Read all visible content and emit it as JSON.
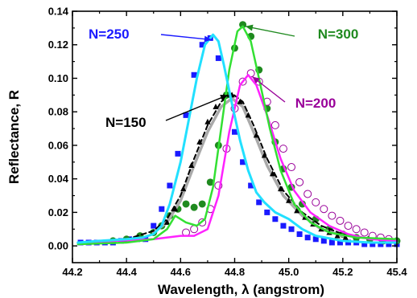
{
  "chart_data": {
    "type": "line",
    "xlabel": "Wavelength, λ (angstrom)",
    "ylabel": "Reflectance, R",
    "xlim": [
      44.2,
      45.4
    ],
    "ylim": [
      -0.01,
      0.14
    ],
    "x_ticks": [
      "44.2",
      "44.4",
      "44.6",
      "44.8",
      "45.0",
      "45.2",
      "45.4"
    ],
    "y_ticks": [
      "0.00",
      "0.02",
      "0.04",
      "0.06",
      "0.08",
      "0.10",
      "0.12",
      "0.14"
    ],
    "grid": false,
    "annotations": [
      {
        "text": "N=250",
        "color": "#1a1aff",
        "arrow_to": [
          44.72,
          0.125
        ]
      },
      {
        "text": "N=300",
        "color": "#1f8a1f",
        "arrow_to": [
          44.83,
          0.131
        ]
      },
      {
        "text": "N=150",
        "color": "#000000",
        "arrow_to": [
          44.79,
          0.09
        ]
      },
      {
        "text": "N=200",
        "color": "#990099",
        "arrow_to": [
          44.86,
          0.102
        ]
      }
    ],
    "series": [
      {
        "label": "N=250",
        "style": "square markers + cyan line",
        "color": "#1a1aff",
        "line_color": "#22e0ff",
        "marker": "square",
        "x": [
          44.23,
          44.26,
          44.29,
          44.32,
          44.35,
          44.38,
          44.41,
          44.44,
          44.47,
          44.5,
          44.53,
          44.56,
          44.59,
          44.62,
          44.65,
          44.68,
          44.71,
          44.74,
          44.77,
          44.8,
          44.83,
          44.86,
          44.89,
          44.92,
          44.95,
          44.98,
          45.01,
          45.04,
          45.07,
          45.1,
          45.13,
          45.16,
          45.19,
          45.22,
          45.25,
          45.28,
          45.31,
          45.34,
          45.37,
          45.4
        ],
        "y": [
          0.002,
          0.002,
          0.002,
          0.002,
          0.002,
          0.003,
          0.004,
          0.004,
          0.004,
          0.012,
          0.022,
          0.036,
          0.055,
          0.078,
          0.102,
          0.12,
          0.124,
          0.112,
          0.09,
          0.068,
          0.05,
          0.036,
          0.026,
          0.02,
          0.016,
          0.012,
          0.01,
          0.007,
          0.005,
          0.004,
          0.003,
          0.002,
          0.002,
          0.002,
          0.002,
          0.001,
          0.001,
          0.001,
          0.001,
          0.001
        ],
        "line_x": [
          44.22,
          44.3,
          44.4,
          44.46,
          44.5,
          44.53,
          44.56,
          44.6,
          44.63,
          44.66,
          44.69,
          44.72,
          44.74,
          44.76,
          44.79,
          44.82,
          44.85,
          44.88,
          44.91,
          44.95,
          45.0,
          45.05,
          45.1,
          45.2,
          45.3,
          45.4
        ],
        "line_y": [
          0.002,
          0.003,
          0.004,
          0.005,
          0.007,
          0.012,
          0.025,
          0.05,
          0.075,
          0.1,
          0.12,
          0.126,
          0.122,
          0.108,
          0.085,
          0.063,
          0.045,
          0.032,
          0.026,
          0.02,
          0.016,
          0.01,
          0.006,
          0.003,
          0.002,
          0.002
        ]
      },
      {
        "label": "N=300",
        "style": "filled circle markers + green line",
        "color": "#1f8a1f",
        "line_color": "#33e033",
        "marker": "circle",
        "x": [
          44.35,
          44.4,
          44.45,
          44.5,
          44.53,
          44.56,
          44.59,
          44.62,
          44.65,
          44.68,
          44.71,
          44.74,
          44.77,
          44.8,
          44.83,
          44.86,
          44.89,
          44.92,
          44.95,
          44.98,
          45.01,
          45.05,
          45.1,
          45.15,
          45.2,
          45.25,
          45.3,
          45.35,
          45.4
        ],
        "y": [
          0.003,
          0.004,
          0.006,
          0.008,
          0.012,
          0.018,
          0.022,
          0.025,
          0.023,
          0.025,
          0.038,
          0.06,
          0.09,
          0.118,
          0.132,
          0.125,
          0.105,
          0.082,
          0.062,
          0.046,
          0.035,
          0.025,
          0.016,
          0.01,
          0.007,
          0.005,
          0.004,
          0.003,
          0.003
        ],
        "line_x": [
          44.22,
          44.4,
          44.5,
          44.55,
          44.58,
          44.62,
          44.66,
          44.69,
          44.72,
          44.75,
          44.78,
          44.81,
          44.83,
          44.86,
          44.89,
          44.93,
          44.97,
          45.02,
          45.08,
          45.15,
          45.25,
          45.4
        ],
        "line_y": [
          0.001,
          0.002,
          0.004,
          0.01,
          0.018,
          0.014,
          0.012,
          0.016,
          0.035,
          0.07,
          0.105,
          0.128,
          0.131,
          0.122,
          0.1,
          0.07,
          0.045,
          0.025,
          0.014,
          0.008,
          0.005,
          0.004
        ]
      },
      {
        "label": "N=150",
        "style": "triangle markers + black dashed line + gray solid line",
        "color": "#000000",
        "line_color": "#aaaaaa",
        "marker": "triangle",
        "x": [
          44.55,
          44.58,
          44.61,
          44.64,
          44.67,
          44.7,
          44.73,
          44.76,
          44.79,
          44.82,
          44.85,
          44.88,
          44.91,
          44.94,
          44.97,
          45.0,
          45.03,
          45.06,
          45.09,
          45.12,
          45.15,
          45.18,
          45.21
        ],
        "y": [
          0.014,
          0.022,
          0.034,
          0.048,
          0.062,
          0.074,
          0.083,
          0.089,
          0.09,
          0.086,
          0.078,
          0.066,
          0.054,
          0.043,
          0.034,
          0.027,
          0.021,
          0.017,
          0.013,
          0.01,
          0.008,
          0.006,
          0.005
        ],
        "dash_x": [
          44.22,
          44.4,
          44.5,
          44.55,
          44.6,
          44.65,
          44.7,
          44.75,
          44.79,
          44.83,
          44.87,
          44.92,
          44.98,
          45.05,
          45.12,
          45.2,
          45.3,
          45.4
        ],
        "dash_y": [
          0.002,
          0.004,
          0.009,
          0.016,
          0.03,
          0.052,
          0.072,
          0.086,
          0.091,
          0.086,
          0.072,
          0.052,
          0.033,
          0.02,
          0.012,
          0.007,
          0.004,
          0.003
        ],
        "gray_x": [
          44.5,
          44.55,
          44.6,
          44.65,
          44.7,
          44.75,
          44.79,
          44.83,
          44.87,
          44.92,
          44.98,
          45.05,
          45.12,
          45.2
        ],
        "gray_y": [
          0.008,
          0.014,
          0.027,
          0.048,
          0.068,
          0.083,
          0.088,
          0.083,
          0.068,
          0.048,
          0.03,
          0.018,
          0.01,
          0.006
        ]
      },
      {
        "label": "N=200",
        "style": "open circle markers + magenta line",
        "color": "#990099",
        "line_color": "#ff22ff",
        "marker": "open-circle",
        "x": [
          44.62,
          44.65,
          44.68,
          44.71,
          44.74,
          44.77,
          44.8,
          44.83,
          44.86,
          44.89,
          44.92,
          44.95,
          44.98,
          45.01,
          45.04,
          45.07,
          45.1,
          45.13,
          45.16,
          45.19,
          45.22,
          45.25,
          45.28,
          45.31,
          45.34,
          45.37
        ],
        "y": [
          0.008,
          0.01,
          0.014,
          0.022,
          0.036,
          0.058,
          0.082,
          0.098,
          0.103,
          0.098,
          0.086,
          0.072,
          0.058,
          0.047,
          0.038,
          0.031,
          0.026,
          0.022,
          0.018,
          0.015,
          0.012,
          0.01,
          0.008,
          0.006,
          0.005,
          0.004
        ],
        "line_x": [
          44.22,
          44.5,
          44.6,
          44.65,
          44.7,
          44.74,
          44.78,
          44.82,
          44.85,
          44.88,
          44.92,
          44.97,
          45.02,
          45.08,
          45.15,
          45.22,
          45.3,
          45.4
        ],
        "line_y": [
          0.002,
          0.004,
          0.006,
          0.006,
          0.01,
          0.03,
          0.068,
          0.096,
          0.102,
          0.096,
          0.078,
          0.052,
          0.033,
          0.02,
          0.012,
          0.007,
          0.004,
          0.003
        ]
      }
    ]
  }
}
